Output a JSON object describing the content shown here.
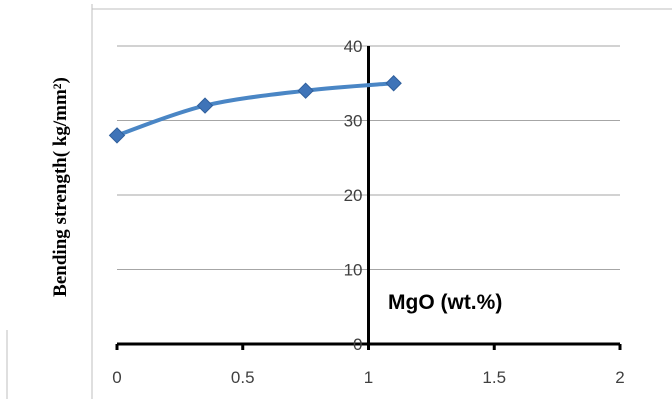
{
  "chart_data": {
    "type": "line",
    "ylabel": "Bending strength( kg/mm²)",
    "xlabel": "MgO (wt.%)",
    "xlim": [
      0,
      2
    ],
    "ylim": [
      0,
      40
    ],
    "x_ticks": [
      "0",
      "0.5",
      "1",
      "1.5",
      "2"
    ],
    "y_ticks": [
      "0",
      "10",
      "20",
      "30",
      "40"
    ],
    "grid": "horizontal",
    "y_axis_at_x": 1,
    "series": [
      {
        "x": [
          0,
          0.35,
          0.75,
          1.1
        ],
        "y": [
          28,
          32,
          34,
          35
        ],
        "color": "#4a86c5",
        "marker": "diamond"
      }
    ]
  }
}
